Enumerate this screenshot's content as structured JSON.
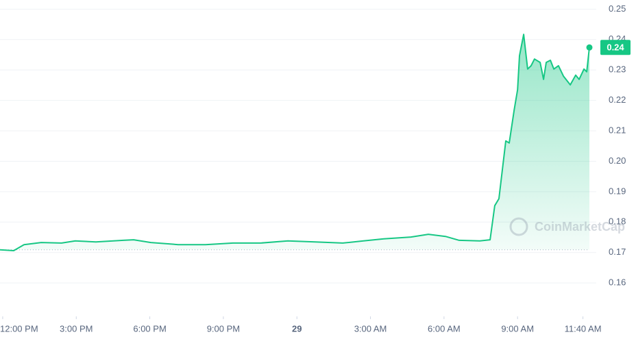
{
  "chart_data": {
    "type": "line",
    "watermark": "CoinMarketCap",
    "x": [
      -0.11,
      0.45,
      0.87,
      1.57,
      2.4,
      2.96,
      3.8,
      4.92,
      5.34,
      6.04,
      7.16,
      8.27,
      9.39,
      10.51,
      11.63,
      12.75,
      13.87,
      14.71,
      15.54,
      16.65,
      17.36,
      18.06,
      18.62,
      19.46,
      19.88,
      20.07,
      20.24,
      20.52,
      20.66,
      20.86,
      21.0,
      21.08,
      21.25,
      21.41,
      21.55,
      21.69,
      21.92,
      22.06,
      22.17,
      22.34,
      22.48,
      22.67,
      22.87,
      23.15,
      23.37,
      23.51,
      23.71,
      23.82,
      23.93
    ],
    "series": [
      {
        "color": "#16c784",
        "values": [
          0.1709,
          0.1706,
          0.1726,
          0.1733,
          0.1731,
          0.1738,
          0.1735,
          0.174,
          0.1742,
          0.1733,
          0.1726,
          0.1726,
          0.1731,
          0.1731,
          0.1738,
          0.1735,
          0.1731,
          0.1738,
          0.1745,
          0.1751,
          0.176,
          0.1753,
          0.174,
          0.1738,
          0.1742,
          0.1854,
          0.1877,
          0.2067,
          0.206,
          0.2168,
          0.2235,
          0.2347,
          0.2417,
          0.2303,
          0.2314,
          0.2336,
          0.2325,
          0.2269,
          0.2325,
          0.2332,
          0.2303,
          0.2314,
          0.228,
          0.2251,
          0.2283,
          0.2269,
          0.2303,
          0.2294,
          0.2374
        ]
      }
    ],
    "price_label": "0.24",
    "baseline": 0.1709,
    "xlim": [
      -0.11,
      23.93
    ],
    "xticks": [
      {
        "value": 0,
        "label": "12:00 PM"
      },
      {
        "value": 3,
        "label": "3:00 PM"
      },
      {
        "value": 6,
        "label": "6:00 PM"
      },
      {
        "value": 9,
        "label": "9:00 PM"
      },
      {
        "value": 12,
        "label": "29"
      },
      {
        "value": 15,
        "label": "3:00 AM"
      },
      {
        "value": 18,
        "label": "6:00 AM"
      },
      {
        "value": 21,
        "label": "9:00 AM"
      },
      {
        "value": 23.667,
        "label": "11:40 AM"
      }
    ],
    "ylim": [
      0.149,
      0.253
    ],
    "yticks": [
      0.25,
      0.24,
      0.23,
      0.22,
      0.21,
      {
        "value": 0.2,
        "label": "0.20"
      },
      0.19,
      0.18,
      0.17,
      0.16
    ],
    "grid": true
  }
}
